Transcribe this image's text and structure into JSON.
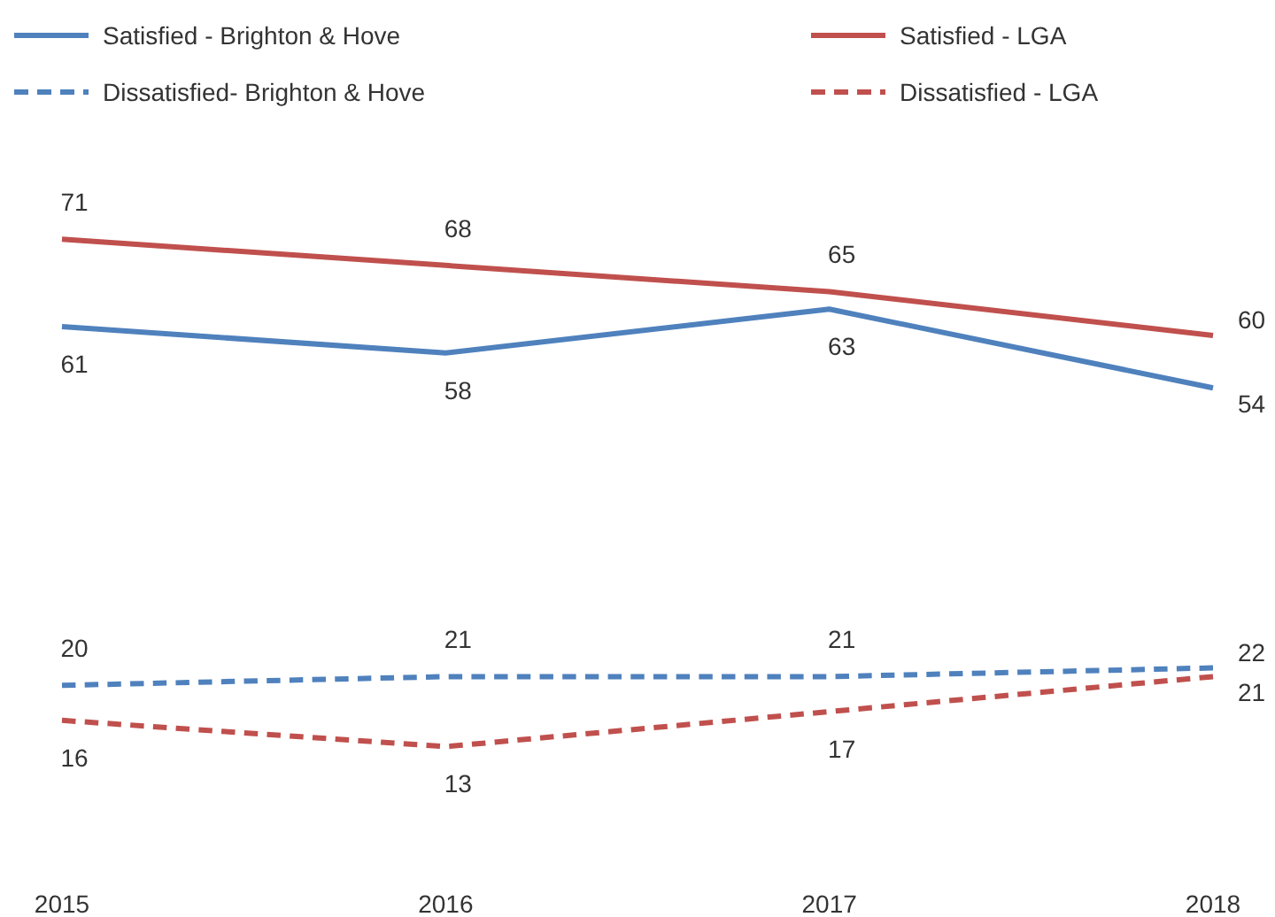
{
  "chart_data": {
    "type": "line",
    "data_labels": true,
    "legend": "top",
    "categories": [
      "2015",
      "2016",
      "2017",
      "2018"
    ],
    "series": [
      {
        "name": "Satisfied - Brighton & Hove",
        "color": "#4f81bd",
        "line_style": "solid",
        "values": [
          61,
          58,
          63,
          54
        ]
      },
      {
        "name": "Satisfied - LGA",
        "color": "#c0504d",
        "line_style": "solid",
        "values": [
          71,
          68,
          65,
          60
        ]
      },
      {
        "name": "Dissatisfied- Brighton & Hove",
        "color": "#4f81bd",
        "line_style": "dashed",
        "values": [
          20,
          21,
          21,
          22
        ]
      },
      {
        "name": "Dissatisfied - LGA",
        "color": "#c0504d",
        "line_style": "dashed",
        "values": [
          16,
          13,
          17,
          21
        ]
      }
    ]
  }
}
